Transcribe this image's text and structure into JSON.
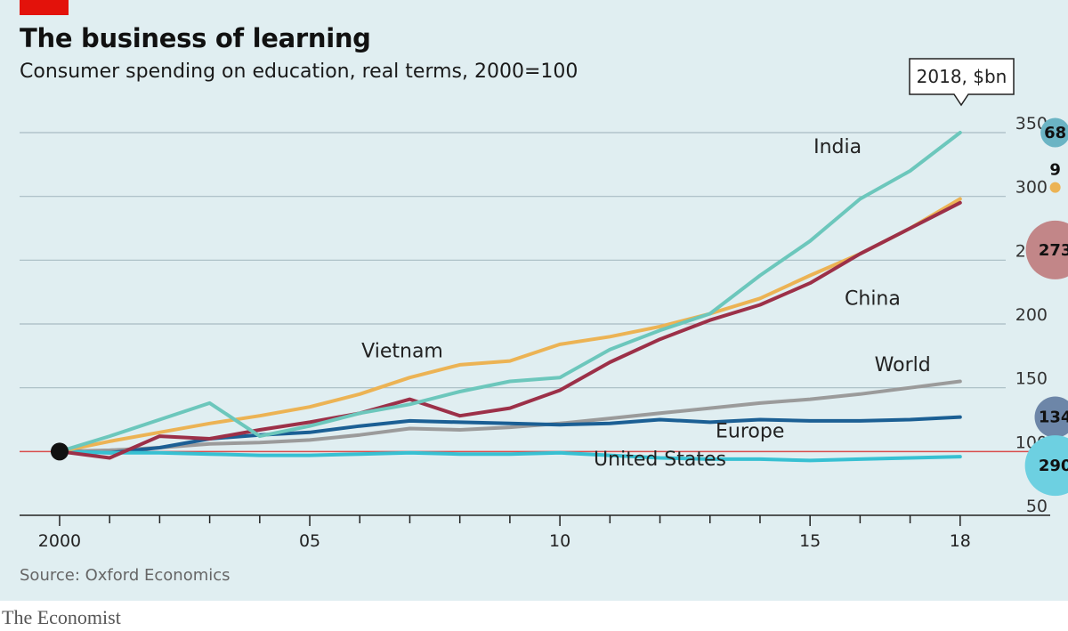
{
  "header": {
    "title": "The business of learning",
    "subtitle": "Consumer spending on education, real terms, 2000=100"
  },
  "footer": {
    "source": "Source: Oxford Economics",
    "brand": "The Economist"
  },
  "legend_box": {
    "label": "2018, $bn"
  },
  "colors": {
    "india": "#6cc7bc",
    "vietnam": "#ecb354",
    "china": "#9c3048",
    "world": "#9b9b9b",
    "europe": "#1b5f94",
    "united_states": "#37c0d2",
    "baseline": "#d94c4c",
    "gridline": "#a8bcc3",
    "background": "#e0eef1",
    "bubble_india": "#6bb4c4",
    "bubble_vietnam": "#ecb354",
    "bubble_china": "#c28688",
    "bubble_europe": "#6d86a8",
    "bubble_us": "#6dd0e1"
  },
  "chart_data": {
    "type": "line",
    "title": "The business of learning",
    "subtitle": "Consumer spending on education, real terms, 2000=100",
    "x": [
      2000,
      2001,
      2002,
      2003,
      2004,
      2005,
      2006,
      2007,
      2008,
      2009,
      2010,
      2011,
      2012,
      2013,
      2014,
      2015,
      2016,
      2017,
      2018
    ],
    "x_tick_values": [
      2000,
      2005,
      2010,
      2015,
      2018
    ],
    "x_tick_labels": [
      "2000",
      "05",
      "10",
      "15",
      "18"
    ],
    "xlim": [
      1999.2,
      2019.8
    ],
    "ylim": [
      50,
      350
    ],
    "y_ticks": [
      50,
      100,
      150,
      200,
      250,
      300,
      350
    ],
    "y_tick_labels": [
      "50",
      "100",
      "150",
      "200",
      "250",
      "300",
      "350"
    ],
    "grid": true,
    "baseline": 100,
    "series": [
      {
        "name": "India",
        "color_key": "india",
        "values": [
          100,
          112,
          125,
          138,
          112,
          120,
          130,
          137,
          147,
          155,
          158,
          180,
          195,
          208,
          238,
          265,
          298,
          320,
          350
        ]
      },
      {
        "name": "Vietnam",
        "color_key": "vietnam",
        "values": [
          100,
          108,
          115,
          122,
          128,
          135,
          145,
          158,
          168,
          171,
          184,
          190,
          198,
          208,
          220,
          238,
          255,
          275,
          298
        ]
      },
      {
        "name": "China",
        "color_key": "china",
        "values": [
          100,
          95,
          112,
          110,
          117,
          123,
          130,
          141,
          128,
          134,
          148,
          170,
          188,
          203,
          215,
          232,
          255,
          275,
          295
        ]
      },
      {
        "name": "World",
        "color_key": "world",
        "values": [
          100,
          101,
          103,
          106,
          107,
          109,
          113,
          118,
          117,
          119,
          122,
          126,
          130,
          134,
          138,
          141,
          145,
          150,
          155
        ]
      },
      {
        "name": "Europe",
        "color_key": "europe",
        "values": [
          100,
          99,
          103,
          110,
          113,
          115,
          120,
          124,
          123,
          122,
          121,
          122,
          125,
          123,
          125,
          124,
          124,
          125,
          127
        ]
      },
      {
        "name": "United States",
        "color_key": "united_states",
        "values": [
          100,
          99,
          99,
          98,
          97,
          97,
          98,
          99,
          98,
          98,
          99,
          97,
          95,
          94,
          94,
          93,
          94,
          95,
          96
        ]
      }
    ],
    "series_labels": [
      {
        "text": "India",
        "x": 2015.55,
        "y": 334
      },
      {
        "text": "Vietnam",
        "x": 2006.85,
        "y": 174
      },
      {
        "text": "China",
        "x": 2016.25,
        "y": 215
      },
      {
        "text": "World",
        "x": 2016.85,
        "y": 163
      },
      {
        "text": "Europe",
        "x": 2013.8,
        "y": 111
      },
      {
        "text": "United States",
        "x": 2012.0,
        "y": 89
      }
    ],
    "bubbles_2018_bn": [
      {
        "series": "India",
        "value": 68,
        "label": "68",
        "y": 350,
        "color_key": "bubble_india"
      },
      {
        "series": "Vietnam",
        "value": 9,
        "label": "9",
        "y": 307,
        "color_key": "bubble_vietnam"
      },
      {
        "series": "China",
        "value": 273,
        "label": "273",
        "y": 258,
        "color_key": "bubble_china"
      },
      {
        "series": "Europe",
        "value": 134,
        "label": "134",
        "y": 127,
        "color_key": "bubble_europe"
      },
      {
        "series": "United States",
        "value": 290,
        "label": "290",
        "y": 89,
        "color_key": "bubble_us"
      }
    ],
    "bubble_x": 2019.9
  }
}
